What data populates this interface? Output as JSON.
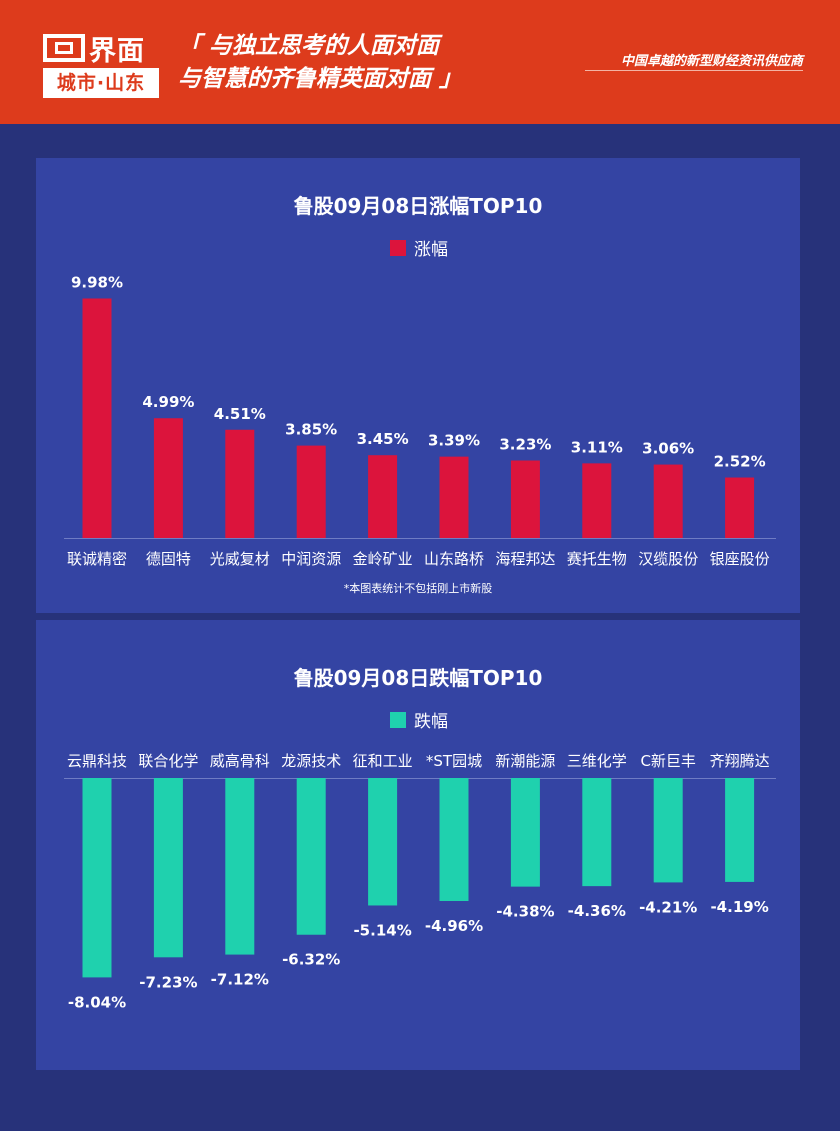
{
  "header": {
    "brand_name": "界面",
    "brand_sub": "城市·山东",
    "slogan_line1": "「 与独立思考的人面对面",
    "slogan_line2": "与智慧的齐鲁精英面对面 」",
    "tagline": "中国卓越的新型财经资讯供应商"
  },
  "colors": {
    "header_bg": "#dd3b1c",
    "page_bg": "#27327a",
    "panel_bg": "#3444a3",
    "gain_bar": "#dc143c",
    "loss_bar": "#1fd1ae"
  },
  "chart_data": [
    {
      "type": "bar",
      "title": "鲁股09月08日涨幅TOP10",
      "legend": "涨幅",
      "legend_position": "top-center",
      "note": "*本图表统计不包括刚上市新股",
      "categories": [
        "联诚精密",
        "德固特",
        "光威复材",
        "中润资源",
        "金岭矿业",
        "山东路桥",
        "海程邦达",
        "赛托生物",
        "汉缆股份",
        "银座股份"
      ],
      "values": [
        9.98,
        4.99,
        4.51,
        3.85,
        3.45,
        3.39,
        3.23,
        3.11,
        3.06,
        2.52
      ],
      "labels": [
        "9.98%",
        "4.99%",
        "4.51%",
        "3.85%",
        "3.45%",
        "3.39%",
        "3.23%",
        "3.11%",
        "3.06%",
        "2.52%"
      ],
      "ylim": [
        0,
        10
      ],
      "grid": false
    },
    {
      "type": "bar",
      "title": "鲁股09月08日跌幅TOP10",
      "legend": "跌幅",
      "legend_position": "top-center",
      "categories": [
        "云鼎科技",
        "联合化学",
        "威高骨科",
        "龙源技术",
        "征和工业",
        "*ST园城",
        "新潮能源",
        "三维化学",
        "C新巨丰",
        "齐翔腾达"
      ],
      "values": [
        -8.04,
        -7.23,
        -7.12,
        -6.32,
        -5.14,
        -4.96,
        -4.38,
        -4.36,
        -4.21,
        -4.19
      ],
      "labels": [
        "-8.04%",
        "-7.23%",
        "-7.12%",
        "-6.32%",
        "-5.14%",
        "-4.96%",
        "-4.38%",
        "-4.36%",
        "-4.21%",
        "-4.19%"
      ],
      "ylim": [
        -10,
        0
      ],
      "grid": false
    }
  ]
}
